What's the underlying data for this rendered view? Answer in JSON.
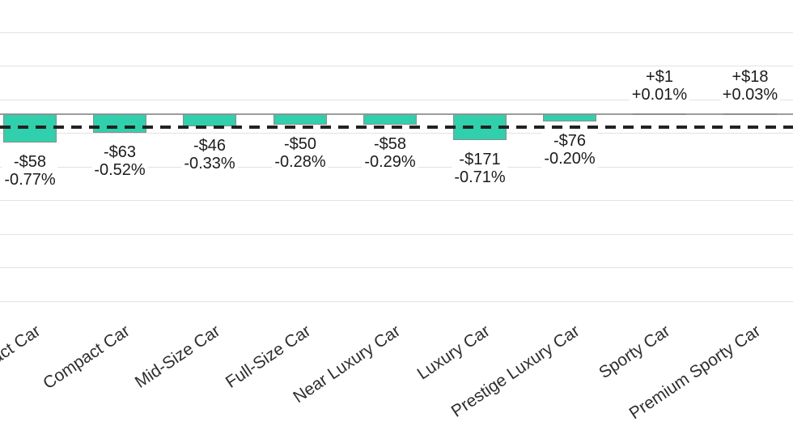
{
  "chart_data": {
    "type": "bar",
    "title": "",
    "categories": [
      "Subcompact Car",
      "Compact Car",
      "Mid-Size Car",
      "Full-Size Car",
      "Near Luxury Car",
      "Luxury Car",
      "Prestige Luxury Car",
      "Sporty Car",
      "Premium Sporty Car"
    ],
    "series": [
      {
        "name": "dollar_change",
        "values": [
          -58,
          -63,
          -46,
          -50,
          -58,
          -171,
          -76,
          1,
          18
        ]
      },
      {
        "name": "percent_change",
        "values": [
          -0.77,
          -0.52,
          -0.33,
          -0.28,
          -0.29,
          -0.71,
          -0.2,
          0.01,
          0.03
        ]
      }
    ],
    "bar_labels": [
      {
        "dollar": "-$58",
        "percent": "-0.77%"
      },
      {
        "dollar": "-$63",
        "percent": "-0.52%"
      },
      {
        "dollar": "-$46",
        "percent": "-0.33%"
      },
      {
        "dollar": "-$50",
        "percent": "-0.28%"
      },
      {
        "dollar": "-$58",
        "percent": "-0.29%"
      },
      {
        "dollar": "-$171",
        "percent": "-0.71%"
      },
      {
        "dollar": "-$76",
        "percent": "-0.20%"
      },
      {
        "dollar": "+$1",
        "percent": "+0.01%"
      },
      {
        "dollar": "+$18",
        "percent": "+0.03%"
      }
    ],
    "dashed_reference_line": {
      "style": "dashed",
      "approx_percent": -0.31
    },
    "colors": {
      "bar_fill": "#31d0ac",
      "bar_border": "#8e8e8e",
      "dashed_line": "#222222",
      "gridline": "#e2e2e2",
      "baseline": "#9c9c9c",
      "label_text": "#1c1c1c"
    },
    "grid": true,
    "legend": "none",
    "x_axis_label_rotation_deg": -34,
    "y_axis_labels_visible": false
  }
}
